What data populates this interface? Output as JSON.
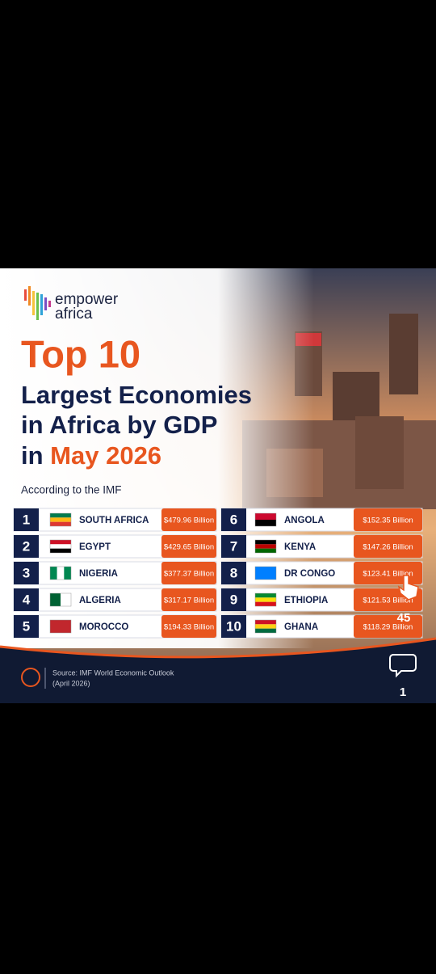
{
  "brand": {
    "line1": "empower",
    "line2": "africa"
  },
  "title": {
    "top": "Top 10",
    "line1": "Largest Economies",
    "line2": "in Africa by GDP",
    "line3_prefix": "in ",
    "line3_highlight": "May 2026"
  },
  "subtitle": "According to the IMF",
  "rankings": [
    {
      "rank": 1,
      "country": "SOUTH AFRICA",
      "gdp": "$479.96 Billion"
    },
    {
      "rank": 2,
      "country": "EGYPT",
      "gdp": "$429.65 Billion"
    },
    {
      "rank": 3,
      "country": "NIGERIA",
      "gdp": "$377.37 Billion"
    },
    {
      "rank": 4,
      "country": "ALGERIA",
      "gdp": "$317.17 Billion"
    },
    {
      "rank": 5,
      "country": "MOROCCO",
      "gdp": "$194.33 Billion"
    },
    {
      "rank": 6,
      "country": "ANGOLA",
      "gdp": "$152.35 Billion"
    },
    {
      "rank": 7,
      "country": "KENYA",
      "gdp": "$147.26 Billion"
    },
    {
      "rank": 8,
      "country": "DR CONGO",
      "gdp": "$123.41 Billion"
    },
    {
      "rank": 9,
      "country": "ETHIOPIA",
      "gdp": "$121.53 Billion"
    },
    {
      "rank": 10,
      "country": "GHANA",
      "gdp": "$118.29 Billion"
    }
  ],
  "footer": {
    "source": "Source: IMF World Economic Outlook",
    "date": "(April 2026)"
  },
  "overlay": {
    "likes": "45",
    "comments": "1"
  }
}
